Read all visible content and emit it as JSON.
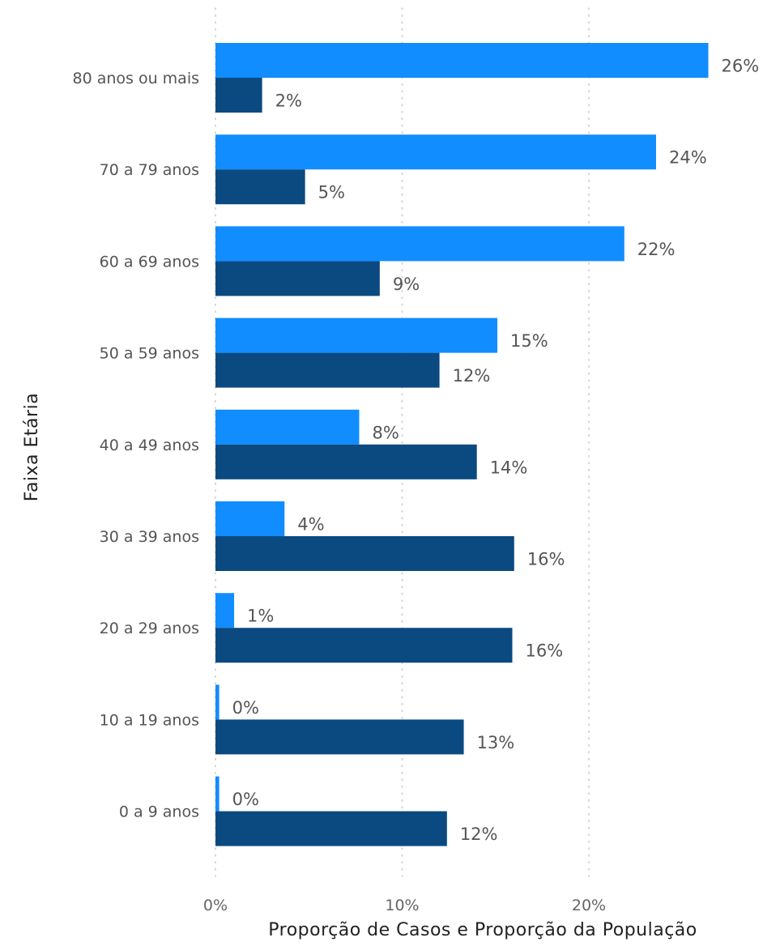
{
  "chart_data": {
    "type": "bar",
    "orientation": "horizontal",
    "categories": [
      "80 anos ou mais",
      "70 a 79 anos",
      "60 a 69 anos",
      "50 a 59 anos",
      "40 a 49 anos",
      "30 a 39 anos",
      "20 a 29 anos",
      "10 a 19 anos",
      "0 a 9 anos"
    ],
    "series": [
      {
        "color": "#118dff",
        "values": [
          26.4,
          23.6,
          21.9,
          15.1,
          7.7,
          3.7,
          1.0,
          0.2,
          0.2
        ],
        "labels": [
          "26%",
          "24%",
          "22%",
          "15%",
          "8%",
          "4%",
          "1%",
          "0%",
          "0%"
        ]
      },
      {
        "color": "#0a4a80",
        "values": [
          2.5,
          4.8,
          8.8,
          12.0,
          14.0,
          16.0,
          15.9,
          13.3,
          12.4
        ],
        "labels": [
          "2%",
          "5%",
          "9%",
          "12%",
          "14%",
          "16%",
          "16%",
          "13%",
          "12%"
        ]
      }
    ],
    "xlabel": "Proporção de Casos e Proporção da População",
    "ylabel": "Faixa Etária",
    "xticks": [
      "0%",
      "10%",
      "20%"
    ],
    "xtick_values": [
      0,
      10,
      20
    ],
    "xlim": [
      0,
      26.4
    ],
    "grid": true
  }
}
